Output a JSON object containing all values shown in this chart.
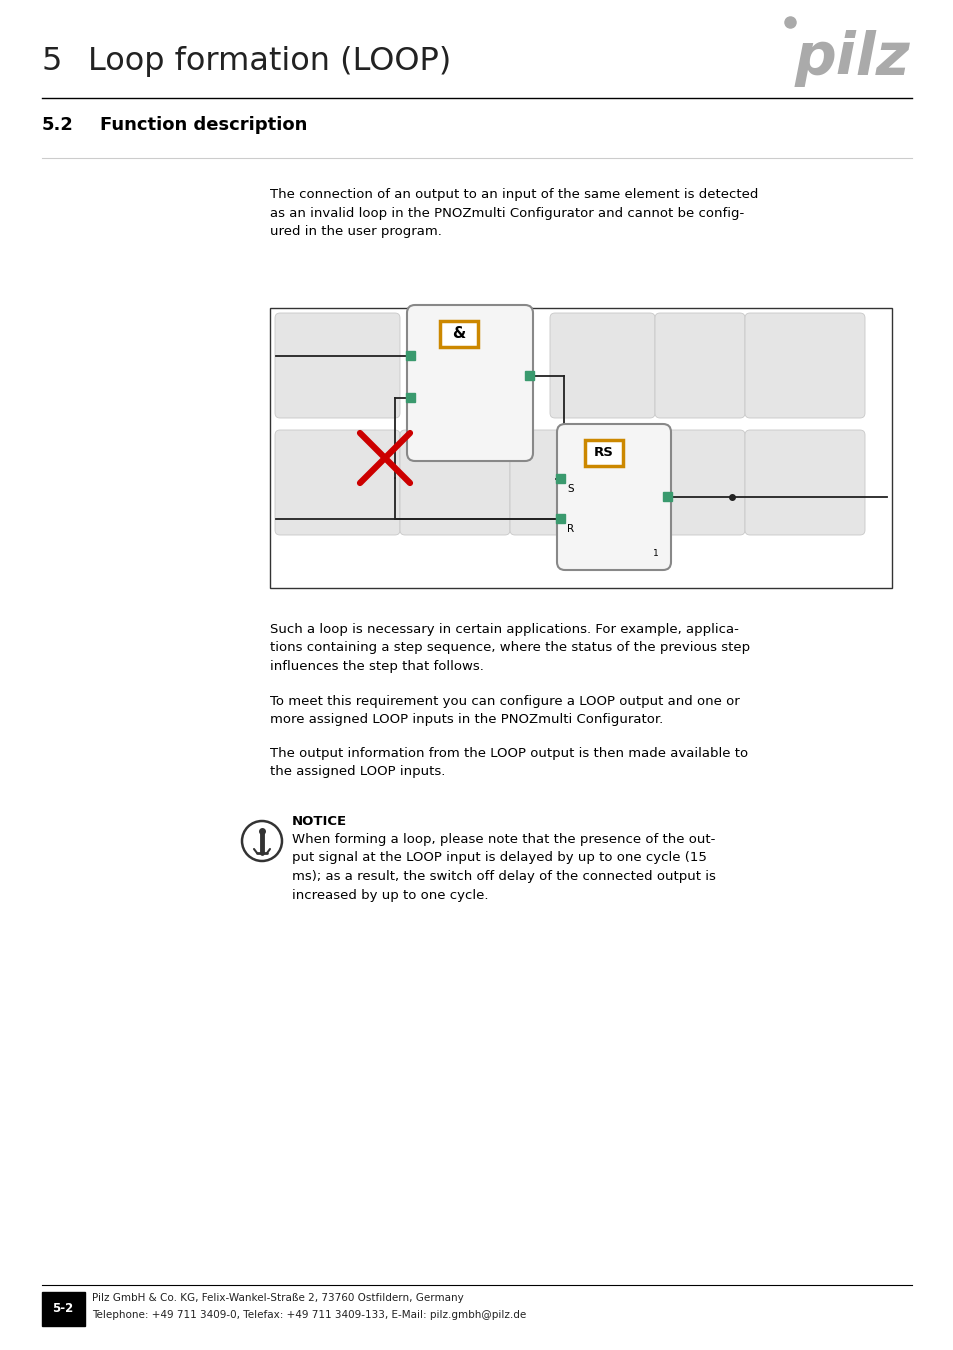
{
  "page_title_num": "5",
  "page_title_text": "Loop formation (LOOP)",
  "section_num": "5.2",
  "section_title": "Function description",
  "pilz_logo_color": "#aaaaaa",
  "header_line_color": "#000000",
  "section_line_color": "#cccccc",
  "body_text_1": "The connection of an output to an input of the same element is detected\nas an invalid loop in the PNOZmulti Configurator and cannot be config-\nured in the user program.",
  "body_text_2": "Such a loop is necessary in certain applications. For example, applica-\ntions containing a step sequence, where the status of the previous step\ninfluences the step that follows.",
  "body_text_3": "To meet this requirement you can configure a LOOP output and one or\nmore assigned LOOP inputs in the PNOZmulti Configurator.",
  "body_text_4": "The output information from the LOOP output is then made available to\nthe assigned LOOP inputs.",
  "notice_title": "NOTICE",
  "notice_text": "When forming a loop, please note that the presence of the out-\nput signal at the LOOP input is delayed by up to one cycle (15\nms); as a result, the switch off delay of the connected output is\nincreased by up to one cycle.",
  "footer_label": "5-2",
  "footer_company": "Pilz GmbH & Co. KG, Felix-Wankel-Straße 2, 73760 Ostfildern, Germany",
  "footer_phone": "Telephone: +49 711 3409-0, Telefax: +49 711 3409-133, E-Mail: pilz.gmbh@pilz.de",
  "connector_color": "#3a9a6e",
  "wire_color": "#222222",
  "golden_border": "#cc8800",
  "cross_color": "#cc0000",
  "tile_color": "#e5e5e5",
  "tile_border": "#c8c8c8",
  "block_face": "#f0f0f0",
  "block_border": "#888888",
  "bg_color": "#ffffff"
}
